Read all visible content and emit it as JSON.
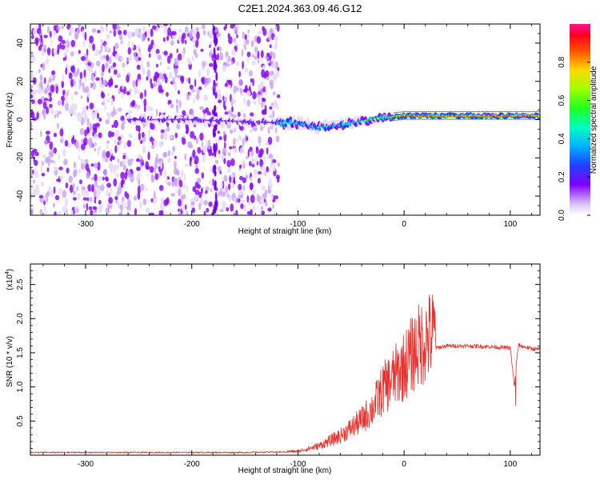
{
  "figure": {
    "title": "C2E1.2024.363.09.46.G12"
  },
  "chart_data": [
    {
      "type": "heatmap",
      "title": "C2E1.2024.363.09.46.G12",
      "xlabel": "Height of straight line (km)",
      "ylabel": "Frequency (Hz)",
      "xlim": [
        -352,
        128
      ],
      "ylim": [
        -50,
        50
      ],
      "xticks": [
        -300,
        -200,
        -100,
        0,
        100
      ],
      "yticks": [
        -40,
        -20,
        0,
        20,
        40
      ],
      "colorbar": {
        "label": "Normalized spectral amplitude",
        "range": [
          0,
          1
        ],
        "ticks": [
          "0.0",
          "0.2",
          "0.4",
          "0.6",
          "0.8"
        ],
        "colormap": [
          "#ffffff",
          "#e8d8f8",
          "#8000ff",
          "#0040ff",
          "#00c0ff",
          "#00ffa0",
          "#40ff00",
          "#c0ff00",
          "#ffd000",
          "#ff6000",
          "#ff0000",
          "#ff0080"
        ]
      },
      "ridge": {
        "x": [
          -250,
          -200,
          -150,
          -100,
          -80,
          -60,
          -40,
          -20,
          0,
          50,
          100,
          128
        ],
        "freq": [
          0,
          0,
          -1,
          -2,
          -4,
          -3,
          -1,
          1,
          2,
          2,
          2,
          2
        ]
      }
    },
    {
      "type": "line",
      "xlabel": "Height of straight line (km)",
      "ylabel": "SNR (10 * v/v)",
      "yscale_label": "(x10",
      "yscale_exponent": "4",
      "xlim": [
        -352,
        128
      ],
      "ylim": [
        0,
        2.8
      ],
      "xticks": [
        -300,
        -200,
        -100,
        0,
        100
      ],
      "yticks": [
        "0.5",
        "1.0",
        "1.5",
        "2.0",
        "2.5"
      ],
      "color": "#e8302c",
      "envelope": {
        "x": [
          -352,
          -150,
          -100,
          -80,
          -60,
          -50,
          -40,
          -30,
          -20,
          -10,
          0,
          10,
          20,
          30,
          40,
          60,
          80,
          100,
          104,
          106,
          108,
          110,
          120,
          128
        ],
        "y": [
          0.04,
          0.04,
          0.05,
          0.12,
          0.25,
          0.35,
          0.45,
          0.6,
          0.85,
          1.0,
          1.15,
          1.35,
          1.5,
          1.57,
          1.6,
          1.6,
          1.59,
          1.57,
          1.0,
          1.4,
          1.62,
          1.6,
          1.56,
          1.55
        ]
      }
    }
  ]
}
